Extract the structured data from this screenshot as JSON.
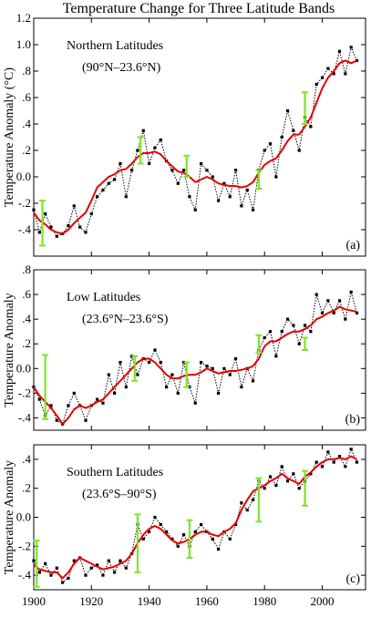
{
  "title": "Temperature Change for Three Latitude Bands",
  "x_ticks": [
    "1900",
    "1920",
    "1940",
    "1960",
    "1980",
    "2000"
  ],
  "colors": {
    "annual": "#000000",
    "smooth": "#e60000",
    "error_bar": "#7ee52a"
  },
  "chart_data": [
    {
      "type": "line",
      "panel_label": "(a)",
      "name_line1": "Northern Latitudes",
      "name_line2": "(90°N–23.6°N)",
      "ylabel": "Temperature Anomaly (°C)",
      "yticks": [
        {
          "v": -0.4,
          "t": "-.4"
        },
        {
          "v": -0.2,
          "t": "-.2"
        },
        {
          "v": 0.0,
          "t": "0.0"
        },
        {
          "v": 0.2,
          "t": ".2"
        },
        {
          "v": 0.4,
          "t": ".4"
        },
        {
          "v": 0.6,
          "t": ".6"
        },
        {
          "v": 0.8,
          "t": ".8"
        },
        {
          "v": 1.0,
          "t": "1.0"
        },
        {
          "v": 1.2,
          "t": "1.2"
        }
      ],
      "ylim": [
        -0.6,
        1.2
      ],
      "xlim": [
        1900,
        2015
      ],
      "series": [
        {
          "style": "dotted-markers",
          "x": [
            1900,
            1902,
            1904,
            1906,
            1908,
            1910,
            1912,
            1914,
            1916,
            1918,
            1920,
            1922,
            1924,
            1926,
            1928,
            1930,
            1932,
            1934,
            1936,
            1938,
            1940,
            1942,
            1944,
            1946,
            1948,
            1950,
            1952,
            1954,
            1956,
            1958,
            1960,
            1962,
            1964,
            1966,
            1968,
            1970,
            1972,
            1974,
            1976,
            1978,
            1980,
            1982,
            1984,
            1986,
            1988,
            1990,
            1992,
            1994,
            1996,
            1998,
            2000,
            2002,
            2004,
            2006,
            2008,
            2010,
            2012
          ],
          "values": [
            -0.25,
            -0.42,
            -0.28,
            -0.38,
            -0.45,
            -0.43,
            -0.37,
            -0.22,
            -0.38,
            -0.42,
            -0.28,
            -0.15,
            -0.1,
            -0.05,
            -0.02,
            0.1,
            -0.15,
            0.05,
            0.2,
            0.35,
            0.1,
            0.22,
            0.28,
            0.12,
            0.05,
            -0.05,
            0.05,
            -0.15,
            -0.25,
            0.1,
            0.05,
            0.0,
            -0.18,
            -0.05,
            -0.15,
            0.05,
            -0.22,
            -0.1,
            -0.25,
            0.05,
            0.2,
            0.25,
            0.0,
            0.3,
            0.5,
            0.35,
            0.2,
            0.45,
            0.38,
            0.7,
            0.75,
            0.82,
            0.78,
            0.95,
            0.78,
            0.98,
            0.88
          ]
        },
        {
          "style": "smooth",
          "x": [
            1900,
            1902,
            1904,
            1906,
            1908,
            1910,
            1912,
            1914,
            1916,
            1918,
            1920,
            1922,
            1924,
            1926,
            1928,
            1930,
            1932,
            1934,
            1936,
            1938,
            1940,
            1942,
            1944,
            1946,
            1948,
            1950,
            1952,
            1954,
            1956,
            1958,
            1960,
            1962,
            1964,
            1966,
            1968,
            1970,
            1972,
            1974,
            1976,
            1978,
            1980,
            1982,
            1984,
            1986,
            1988,
            1990,
            1992,
            1994,
            1996,
            1998,
            2000,
            2002,
            2004,
            2006,
            2008,
            2010,
            2012
          ],
          "values": [
            -0.27,
            -0.33,
            -0.36,
            -0.4,
            -0.42,
            -0.43,
            -0.4,
            -0.35,
            -0.31,
            -0.27,
            -0.18,
            -0.08,
            -0.04,
            0.0,
            0.02,
            0.05,
            0.06,
            0.1,
            0.15,
            0.18,
            0.18,
            0.19,
            0.17,
            0.12,
            0.08,
            0.04,
            0.03,
            0.0,
            -0.04,
            -0.02,
            0.0,
            -0.02,
            -0.05,
            -0.06,
            -0.07,
            -0.07,
            -0.08,
            -0.07,
            -0.04,
            0.03,
            0.09,
            0.12,
            0.14,
            0.2,
            0.27,
            0.32,
            0.32,
            0.38,
            0.45,
            0.56,
            0.67,
            0.75,
            0.8,
            0.86,
            0.88,
            0.86,
            0.88
          ]
        },
        {
          "style": "error-bars",
          "x": [
            1903,
            1937,
            1953,
            1978,
            1994
          ],
          "values": [
            -0.35,
            0.2,
            0.08,
            -0.02,
            0.52
          ],
          "err": [
            0.17,
            0.1,
            0.08,
            0.07,
            0.12
          ]
        }
      ]
    },
    {
      "type": "line",
      "panel_label": "(b)",
      "name_line1": "Low Latitudes",
      "name_line2": "(23.6°N–23.6°S)",
      "ylabel": "Temperature Anomaly",
      "yticks": [
        {
          "v": -0.4,
          "t": "-.4"
        },
        {
          "v": -0.2,
          "t": "-.2"
        },
        {
          "v": 0.0,
          "t": "0.0"
        },
        {
          "v": 0.2,
          "t": ".2"
        },
        {
          "v": 0.4,
          "t": ".4"
        },
        {
          "v": 0.6,
          "t": ".6"
        },
        {
          "v": 0.8,
          "t": ".8"
        }
      ],
      "ylim": [
        -0.5,
        0.8
      ],
      "xlim": [
        1900,
        2015
      ],
      "series": [
        {
          "style": "dotted-markers",
          "x": [
            1900,
            1902,
            1904,
            1906,
            1908,
            1910,
            1912,
            1914,
            1916,
            1918,
            1920,
            1922,
            1924,
            1926,
            1928,
            1930,
            1932,
            1934,
            1936,
            1938,
            1940,
            1942,
            1944,
            1946,
            1948,
            1950,
            1952,
            1954,
            1956,
            1958,
            1960,
            1962,
            1964,
            1966,
            1968,
            1970,
            1972,
            1974,
            1976,
            1978,
            1980,
            1982,
            1984,
            1986,
            1988,
            1990,
            1992,
            1994,
            1996,
            1998,
            2000,
            2002,
            2004,
            2006,
            2008,
            2010,
            2012
          ],
          "values": [
            -0.15,
            -0.25,
            -0.38,
            -0.3,
            -0.42,
            -0.45,
            -0.3,
            -0.2,
            -0.3,
            -0.42,
            -0.3,
            -0.25,
            -0.28,
            -0.05,
            -0.2,
            0.05,
            -0.15,
            0.1,
            -0.05,
            0.08,
            0.05,
            0.15,
            0.05,
            -0.15,
            -0.05,
            -0.2,
            0.05,
            -0.15,
            -0.28,
            0.05,
            0.02,
            0.0,
            -0.2,
            0.0,
            -0.05,
            0.08,
            -0.15,
            0.0,
            -0.1,
            0.15,
            0.25,
            0.3,
            0.1,
            0.3,
            0.4,
            0.35,
            0.2,
            0.35,
            0.3,
            0.6,
            0.45,
            0.55,
            0.45,
            0.55,
            0.4,
            0.62,
            0.45
          ]
        },
        {
          "style": "smooth",
          "x": [
            1900,
            1902,
            1904,
            1906,
            1908,
            1910,
            1912,
            1914,
            1916,
            1918,
            1920,
            1922,
            1924,
            1926,
            1928,
            1930,
            1932,
            1934,
            1936,
            1938,
            1940,
            1942,
            1944,
            1946,
            1948,
            1950,
            1952,
            1954,
            1956,
            1958,
            1960,
            1962,
            1964,
            1966,
            1968,
            1970,
            1972,
            1974,
            1976,
            1978,
            1980,
            1982,
            1984,
            1986,
            1988,
            1990,
            1992,
            1994,
            1996,
            1998,
            2000,
            2002,
            2004,
            2006,
            2008,
            2010,
            2012
          ],
          "values": [
            -0.15,
            -0.22,
            -0.27,
            -0.32,
            -0.38,
            -0.45,
            -0.4,
            -0.33,
            -0.3,
            -0.32,
            -0.3,
            -0.27,
            -0.25,
            -0.2,
            -0.15,
            -0.1,
            -0.05,
            0.0,
            0.05,
            0.08,
            0.08,
            0.05,
            0.0,
            -0.05,
            -0.08,
            -0.08,
            -0.06,
            -0.05,
            -0.05,
            -0.03,
            0.0,
            -0.02,
            -0.04,
            -0.03,
            -0.02,
            -0.02,
            -0.01,
            0.0,
            0.02,
            0.08,
            0.18,
            0.22,
            0.22,
            0.25,
            0.28,
            0.3,
            0.3,
            0.32,
            0.35,
            0.4,
            0.42,
            0.45,
            0.47,
            0.5,
            0.48,
            0.47,
            0.46
          ]
        },
        {
          "style": "error-bars",
          "x": [
            1904,
            1935,
            1953,
            1978,
            1994
          ],
          "values": [
            -0.15,
            0.0,
            -0.05,
            0.2,
            0.2
          ],
          "err": [
            0.26,
            0.1,
            0.1,
            0.07,
            0.05
          ]
        }
      ]
    },
    {
      "type": "line",
      "panel_label": "(c)",
      "name_line1": "Southern Latitudes",
      "name_line2": "(23.6°S–90°S)",
      "ylabel": "Temperature Anomaly",
      "yticks": [
        {
          "v": -0.4,
          "t": "-.4"
        },
        {
          "v": -0.2,
          "t": "-.2"
        },
        {
          "v": 0.0,
          "t": "0.0"
        },
        {
          "v": 0.2,
          "t": ".2"
        },
        {
          "v": 0.4,
          "t": ".4"
        }
      ],
      "ylim": [
        -0.5,
        0.5
      ],
      "xlim": [
        1900,
        2015
      ],
      "series": [
        {
          "style": "dotted-markers",
          "x": [
            1900,
            1902,
            1904,
            1906,
            1908,
            1910,
            1912,
            1914,
            1916,
            1918,
            1920,
            1922,
            1924,
            1926,
            1928,
            1930,
            1932,
            1934,
            1936,
            1938,
            1940,
            1942,
            1944,
            1946,
            1948,
            1950,
            1952,
            1954,
            1956,
            1958,
            1960,
            1962,
            1964,
            1966,
            1968,
            1970,
            1972,
            1974,
            1976,
            1978,
            1980,
            1982,
            1984,
            1986,
            1988,
            1990,
            1992,
            1994,
            1996,
            1998,
            2000,
            2002,
            2004,
            2006,
            2008,
            2010,
            2012
          ],
          "values": [
            -0.3,
            -0.38,
            -0.32,
            -0.4,
            -0.35,
            -0.45,
            -0.42,
            -0.3,
            -0.28,
            -0.4,
            -0.35,
            -0.33,
            -0.4,
            -0.3,
            -0.38,
            -0.3,
            -0.35,
            -0.25,
            -0.05,
            -0.15,
            -0.1,
            0.0,
            -0.05,
            -0.1,
            -0.15,
            -0.2,
            -0.12,
            -0.2,
            -0.1,
            -0.05,
            -0.1,
            -0.15,
            -0.22,
            -0.1,
            -0.15,
            -0.05,
            0.1,
            0.05,
            0.12,
            0.25,
            0.2,
            0.28,
            0.22,
            0.35,
            0.25,
            0.3,
            0.2,
            0.25,
            0.3,
            0.38,
            0.35,
            0.45,
            0.38,
            0.42,
            0.35,
            0.47,
            0.38
          ]
        },
        {
          "style": "smooth",
          "x": [
            1900,
            1902,
            1904,
            1906,
            1908,
            1910,
            1912,
            1914,
            1916,
            1918,
            1920,
            1922,
            1924,
            1926,
            1928,
            1930,
            1932,
            1934,
            1936,
            1938,
            1940,
            1942,
            1944,
            1946,
            1948,
            1950,
            1952,
            1954,
            1956,
            1958,
            1960,
            1962,
            1964,
            1966,
            1968,
            1970,
            1972,
            1974,
            1976,
            1978,
            1980,
            1982,
            1984,
            1986,
            1988,
            1990,
            1992,
            1994,
            1996,
            1998,
            2000,
            2002,
            2004,
            2006,
            2008,
            2010,
            2012
          ],
          "values": [
            -0.33,
            -0.36,
            -0.37,
            -0.38,
            -0.38,
            -0.42,
            -0.38,
            -0.32,
            -0.28,
            -0.3,
            -0.32,
            -0.34,
            -0.36,
            -0.35,
            -0.34,
            -0.32,
            -0.3,
            -0.25,
            -0.18,
            -0.12,
            -0.08,
            -0.06,
            -0.08,
            -0.12,
            -0.16,
            -0.18,
            -0.17,
            -0.15,
            -0.12,
            -0.1,
            -0.1,
            -0.12,
            -0.13,
            -0.1,
            -0.08,
            -0.04,
            0.05,
            0.12,
            0.18,
            0.2,
            0.22,
            0.25,
            0.27,
            0.3,
            0.27,
            0.25,
            0.23,
            0.28,
            0.31,
            0.35,
            0.38,
            0.4,
            0.4,
            0.41,
            0.4,
            0.42,
            0.4
          ]
        },
        {
          "style": "error-bars",
          "x": [
            1901,
            1936,
            1954,
            1978,
            1994
          ],
          "values": [
            -0.32,
            -0.18,
            -0.15,
            0.12,
            0.2
          ],
          "err": [
            0.16,
            0.2,
            0.13,
            0.15,
            0.12
          ]
        }
      ]
    }
  ]
}
